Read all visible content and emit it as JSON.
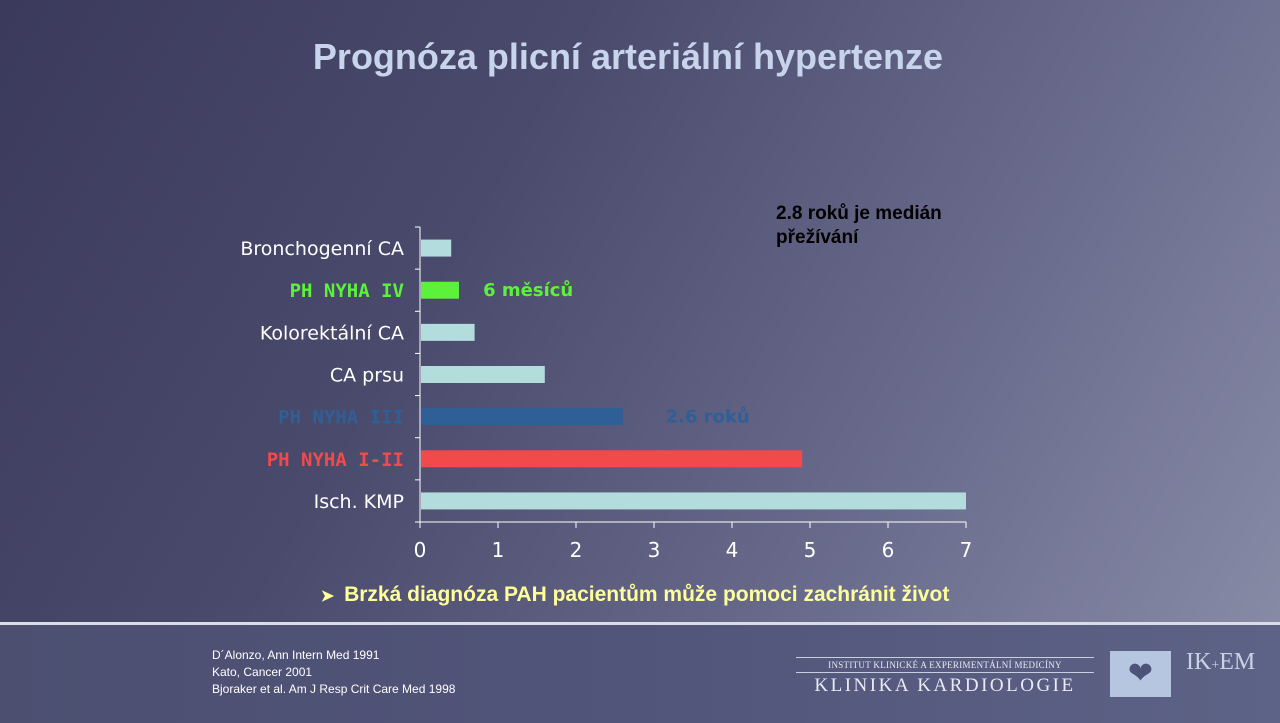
{
  "slide": {
    "title": "Prognóza plicní arteriální hypertenze",
    "note": "2.8 roků je medián přežívání",
    "bullet": "Brzká diagnóza PAH pacientům může pomoci zachránit život",
    "references": [
      "D´Alonzo, Ann Intern Med 1991",
      "Kato, Cancer 2001",
      "Bjoraker et al. Am J Resp Crit Care Med 1998"
    ],
    "institute": {
      "line1": "INSTITUT KLINICKÉ A EXPERIMENTÁLNÍ MEDICÍNY",
      "line2": "KLINIKA KARDIOLOGIE",
      "logo_top": "IK+EM"
    },
    "icons": {
      "bullet": "arrow-right-icon",
      "logo": "heart-icon"
    }
  },
  "chart_data": {
    "type": "bar",
    "orientation": "horizontal",
    "categories": [
      "Bronchogenní CA",
      "PH NYHA IV",
      "Kolorektální CA",
      "CA prsu",
      "PH NYHA III",
      "PH NYHA I-II",
      "Isch. KMP"
    ],
    "values": [
      0.4,
      0.5,
      0.7,
      1.6,
      2.6,
      4.9,
      7.0
    ],
    "colors": [
      "#b3dcdd",
      "#5cf23a",
      "#b3dcdd",
      "#b3dcdd",
      "#2f5f97",
      "#f24a4a",
      "#b3dcdd"
    ],
    "label_colors": [
      "#ffffff",
      "#5cf23a",
      "#ffffff",
      "#ffffff",
      "#2f5f97",
      "#f24a4a",
      "#ffffff"
    ],
    "xlim": [
      0,
      7
    ],
    "xticks": [
      0,
      1,
      2,
      3,
      4,
      5,
      6,
      7
    ],
    "annotations": [
      {
        "text": "6 měsíců",
        "category": "PH NYHA IV",
        "x": 1.4,
        "color": "#5cf23a"
      },
      {
        "text": "2.6 roků",
        "category": "PH NYHA III",
        "x": 3.7,
        "color": "#2f5f97"
      }
    ],
    "grid": false,
    "legend": "none"
  }
}
